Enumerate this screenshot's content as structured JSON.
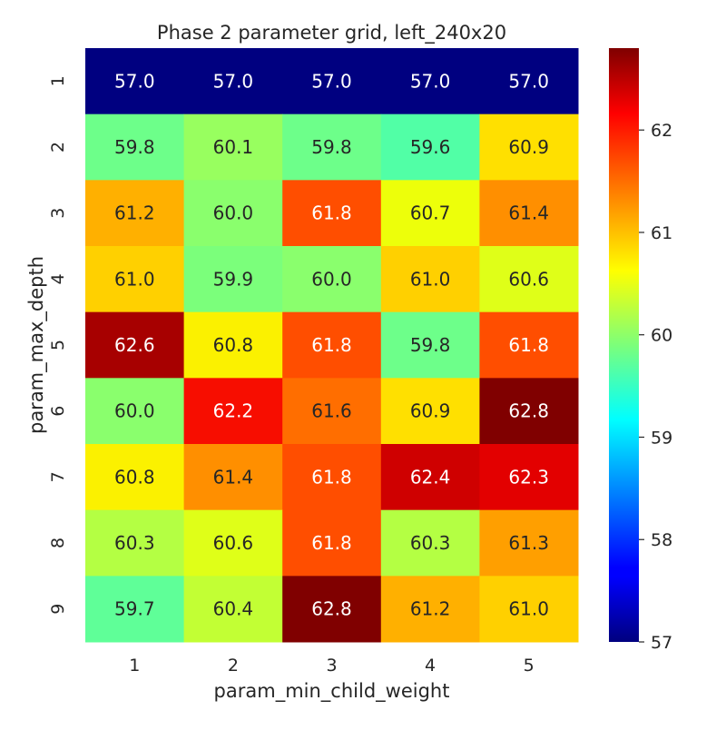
{
  "chart_data": {
    "type": "heatmap",
    "title": "Phase 2 parameter grid, left_240x20",
    "xlabel": "param_min_child_weight",
    "ylabel": "param_max_depth",
    "x_categories": [
      "1",
      "2",
      "3",
      "4",
      "5"
    ],
    "y_categories": [
      "1",
      "2",
      "3",
      "4",
      "5",
      "6",
      "7",
      "8",
      "9"
    ],
    "values": [
      [
        57.0,
        57.0,
        57.0,
        57.0,
        57.0
      ],
      [
        59.8,
        60.1,
        59.8,
        59.6,
        60.9
      ],
      [
        61.2,
        60.0,
        61.8,
        60.7,
        61.4
      ],
      [
        61.0,
        59.9,
        60.0,
        61.0,
        60.6
      ],
      [
        62.6,
        60.8,
        61.8,
        59.8,
        61.8
      ],
      [
        60.0,
        62.2,
        61.6,
        60.9,
        62.8
      ],
      [
        60.8,
        61.4,
        61.8,
        62.4,
        62.3
      ],
      [
        60.3,
        60.6,
        61.8,
        60.3,
        61.3
      ],
      [
        59.7,
        60.4,
        62.8,
        61.2,
        61.0
      ]
    ],
    "colormap": "jet",
    "value_range": [
      57.0,
      62.8
    ],
    "colorbar_ticks": [
      "57",
      "58",
      "59",
      "60",
      "61",
      "62"
    ],
    "annotation_format": "0.1f",
    "grid": false
  }
}
